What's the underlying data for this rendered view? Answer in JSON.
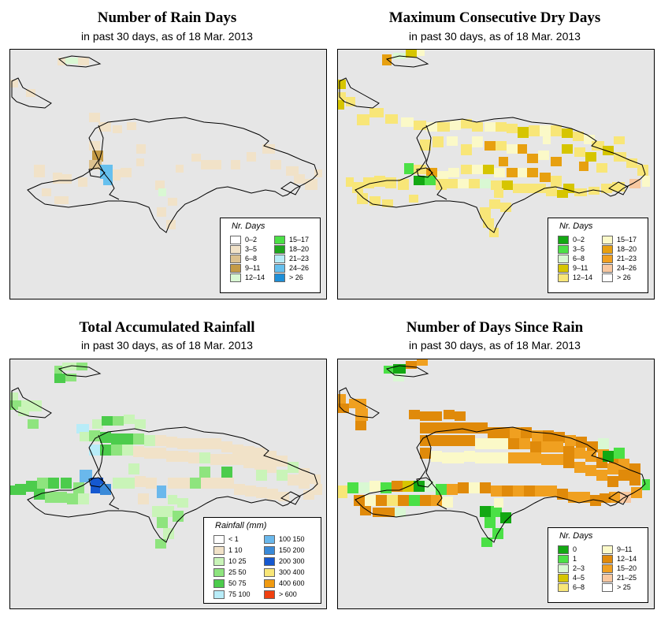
{
  "panels": [
    {
      "id": "rain-days",
      "title": "Number of Rain Days",
      "subtitle": "in past 30 days, as of  18 Mar. 2013",
      "legend": {
        "title": "Nr. Days",
        "items": [
          {
            "label": "0–2",
            "color": "#ffffff"
          },
          {
            "label": "3–5",
            "color": "#f1e2c8"
          },
          {
            "label": "6–8",
            "color": "#dcc18f"
          },
          {
            "label": "9–11",
            "color": "#c49a45"
          },
          {
            "label": "12–14",
            "color": "#d9f8d3"
          },
          {
            "label": "15–17",
            "color": "#4be046"
          },
          {
            "label": "18–20",
            "color": "#1ea61d"
          },
          {
            "label": "21–23",
            "color": "#b8ecf8"
          },
          {
            "label": "24–26",
            "color": "#66c0ee"
          },
          {
            "label": "> 26",
            "color": "#1e8fd8"
          }
        ]
      }
    },
    {
      "id": "max-dry-days",
      "title": "Maximum Consecutive Dry Days",
      "subtitle": "in past 30 days, as of  18 Mar. 2013",
      "legend": {
        "title": "Nr. Days",
        "items": [
          {
            "label": "0–2",
            "color": "#13a813"
          },
          {
            "label": "3–5",
            "color": "#4be046"
          },
          {
            "label": "6–8",
            "color": "#d9f8d3"
          },
          {
            "label": "9–11",
            "color": "#d6c500"
          },
          {
            "label": "12–14",
            "color": "#f8e678"
          },
          {
            "label": "15–17",
            "color": "#fbf9c8"
          },
          {
            "label": "18–20",
            "color": "#e7a010"
          },
          {
            "label": "21–23",
            "color": "#f0a020"
          },
          {
            "label": "24–26",
            "color": "#f8c8a0"
          },
          {
            "label": "> 26",
            "color": "#ffffff"
          }
        ]
      }
    },
    {
      "id": "total-rainfall",
      "title": "Total Accumulated Rainfall",
      "subtitle": "in past 30 days, as of  18 Mar. 2013",
      "legend": {
        "title": "Rainfall (mm)",
        "items": [
          {
            "label": "< 1",
            "color": "#ffffff"
          },
          {
            "label": "1   10",
            "color": "#f1e2c8"
          },
          {
            "label": "10   25",
            "color": "#c9f4b8"
          },
          {
            "label": "25   50",
            "color": "#8ee47e"
          },
          {
            "label": "50   75",
            "color": "#4ccc4c"
          },
          {
            "label": "75  100",
            "color": "#b8ecf8"
          },
          {
            "label": "100  150",
            "color": "#6ab8ec"
          },
          {
            "label": "150  200",
            "color": "#3a8ad8"
          },
          {
            "label": "200  300",
            "color": "#1558d0"
          },
          {
            "label": "300  400",
            "color": "#f8e678"
          },
          {
            "label": "400  600",
            "color": "#f09a10"
          },
          {
            "label": "> 600",
            "color": "#f04010"
          }
        ]
      }
    },
    {
      "id": "days-since-rain",
      "title": "Number of Days Since Rain",
      "subtitle": "in past 30 days, as of  18 Mar. 2013",
      "legend": {
        "title": "Nr. Days",
        "items": [
          {
            "label": "0",
            "color": "#13a813"
          },
          {
            "label": "1",
            "color": "#4be046"
          },
          {
            "label": "2–3",
            "color": "#d9f8d3"
          },
          {
            "label": "4–5",
            "color": "#d6c500"
          },
          {
            "label": "6–8",
            "color": "#f8e678"
          },
          {
            "label": "9–11",
            "color": "#fbf9c8"
          },
          {
            "label": "12–14",
            "color": "#e08a0a"
          },
          {
            "label": "15–20",
            "color": "#f0a020"
          },
          {
            "label": "21–25",
            "color": "#f8c8a0"
          },
          {
            "label": "> 25",
            "color": "#ffffff"
          }
        ]
      }
    }
  ]
}
